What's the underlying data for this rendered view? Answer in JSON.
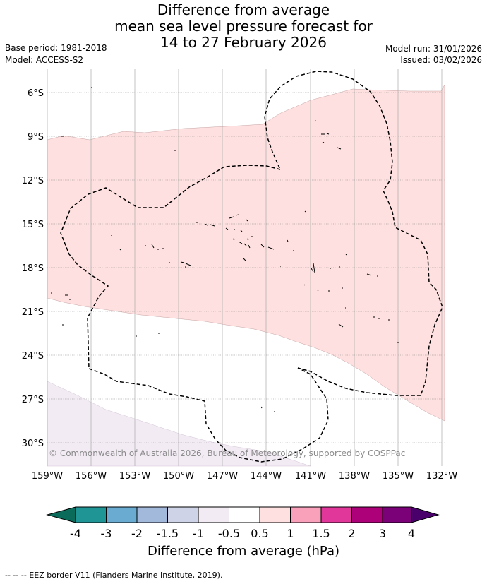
{
  "header": {
    "title_lines": [
      "Difference from average",
      "mean sea level pressure forecast for",
      "14 to 27 February 2026"
    ],
    "base_period": "Base period: 1981-2018",
    "model": "Model: ACCESS-S2",
    "model_run": "Model run: 31/01/2026",
    "issued": "Issued: 03/02/2026"
  },
  "map": {
    "lat_labels": [
      "6°S",
      "9°S",
      "12°S",
      "15°S",
      "18°S",
      "21°S",
      "24°S",
      "27°S",
      "30°S"
    ],
    "lon_labels": [
      "159°W",
      "156°W",
      "153°W",
      "150°W",
      "147°W",
      "144°W",
      "141°W",
      "138°W",
      "135°W",
      "132°W"
    ],
    "copyright": "© Commonwealth of Australia 2026, Bureau of Meteorology, supported by COSPPac",
    "colors": {
      "positive_0_5_to_1": "#fde0df",
      "negative_0_5_to_1": "#f2ebf4",
      "grid": "#888888",
      "eez_border": "#000000"
    }
  },
  "colorbar": {
    "tick_labels": [
      "-4",
      "-3",
      "-2",
      "-1.5",
      "-1",
      "-0.5",
      "0.5",
      "1",
      "1.5",
      "2",
      "3",
      "4"
    ],
    "colors": [
      "#0b6b5a",
      "#1f9596",
      "#6aabd1",
      "#a3b9dc",
      "#cfd3e8",
      "#f2ebf4",
      "#ffffff",
      "#fde0df",
      "#f9a1bb",
      "#e1379b",
      "#ad0179",
      "#7a0177",
      "#49006a"
    ],
    "label": "Difference from average (hPa)"
  },
  "footer": {
    "eez_note": "--  --  -- EEZ border V11 (Flanders Marine Institute, 2019)."
  }
}
